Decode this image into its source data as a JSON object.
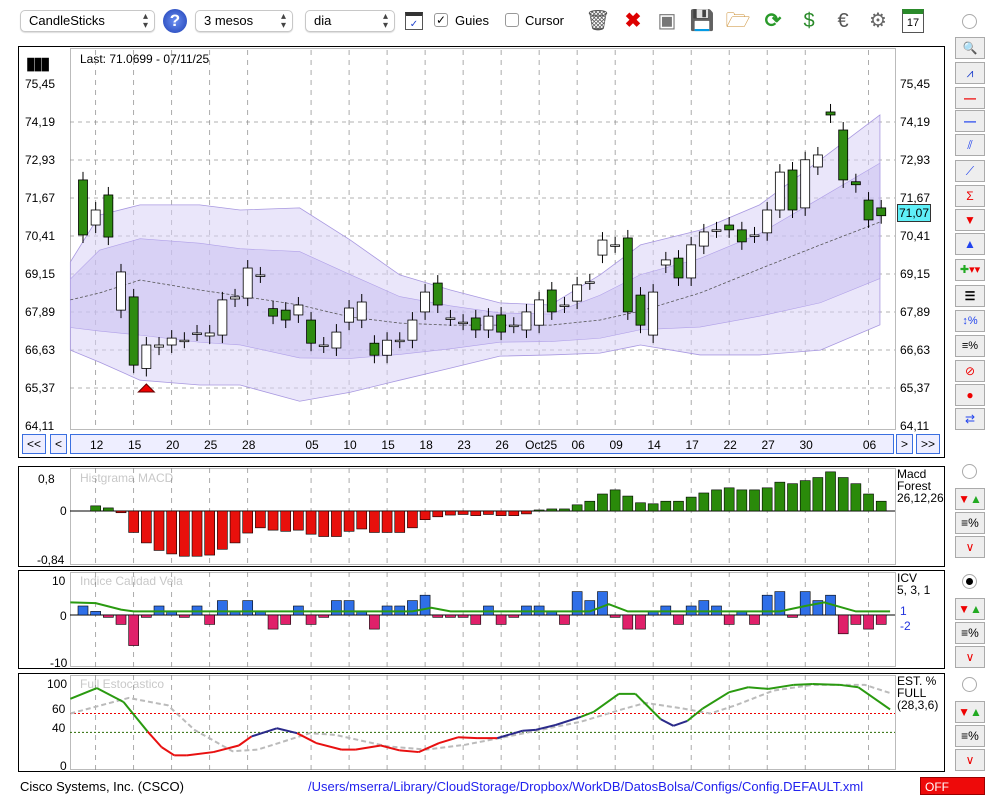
{
  "toolbar": {
    "chart_type": "CandleSticks",
    "period": "3 mesos",
    "interval": "dia",
    "guides_label": "Guies",
    "guides_checked": true,
    "cursor_label": "Cursor",
    "cursor_checked": false,
    "calendar_day": "17"
  },
  "main": {
    "last_label": "Last: 71.0699 - 07/11/25",
    "last_value": "71,07",
    "price_ticks": [
      "75,45",
      "74,19",
      "72,93",
      "71,67",
      "70,41",
      "69,15",
      "67,89",
      "66,63",
      "65,37",
      "64,11"
    ],
    "nav": {
      "first": "<<",
      "prev": "<",
      "next": ">",
      "last": ">>"
    },
    "date_labels": [
      {
        "i": 1,
        "t": "12"
      },
      {
        "i": 4,
        "t": "15"
      },
      {
        "i": 7,
        "t": "20"
      },
      {
        "i": 10,
        "t": "25"
      },
      {
        "i": 13,
        "t": "28"
      },
      {
        "i": 18,
        "t": "05"
      },
      {
        "i": 21,
        "t": "10"
      },
      {
        "i": 24,
        "t": "15"
      },
      {
        "i": 27,
        "t": "18"
      },
      {
        "i": 30,
        "t": "23"
      },
      {
        "i": 33,
        "t": "26"
      },
      {
        "i": 36,
        "t": "Oct25"
      },
      {
        "i": 39,
        "t": "06"
      },
      {
        "i": 42,
        "t": "09"
      },
      {
        "i": 45,
        "t": "14"
      },
      {
        "i": 48,
        "t": "17"
      },
      {
        "i": 51,
        "t": "22"
      },
      {
        "i": 54,
        "t": "27"
      },
      {
        "i": 57,
        "t": "30"
      },
      {
        "i": 62,
        "t": "06"
      }
    ]
  },
  "macd": {
    "title": "Histgrama MACD",
    "legend": [
      "Macd",
      "Forest",
      "26,12,26"
    ],
    "ticks": [
      "0,8",
      "0",
      "-0,84"
    ]
  },
  "icv": {
    "title": "Indice Calidad Vela",
    "legend": [
      "ICV",
      "5, 3, 1"
    ],
    "values_shown": [
      "1",
      "-2"
    ],
    "ticks": [
      "10",
      "0",
      "-10"
    ]
  },
  "stoch": {
    "title": "Full Estocastico",
    "legend": [
      "EST. %",
      "FULL",
      "(28,3,6)"
    ],
    "ticks": [
      "100",
      "60",
      "40",
      "0"
    ]
  },
  "footer": {
    "company": "Cisco Systems, Inc. (CSCO)",
    "path": "/Users/mserra/Library/CloudStorage/Dropbox/WorkDB/DatosBolsa/Configs/Config.DEFAULT.xml",
    "status": "OFF"
  },
  "colors": {
    "up_body": "#ffffff",
    "down_body": "#2e8b10",
    "band": "#d9d2f5",
    "macd_pos": "#2a8a0a",
    "macd_neg": "#e8100c",
    "icv_pos": "#2f6fe8",
    "icv_neg": "#e0206a",
    "accent": "#3a6fe0"
  },
  "chart_data": [
    {
      "type": "candlestick",
      "title": "CSCO",
      "ylim": [
        64.11,
        75.45
      ],
      "ohlc_bodies": [
        [
          72.26,
          70.43
        ],
        [
          70.76,
          71.26
        ],
        [
          71.76,
          70.36
        ],
        [
          67.93,
          69.2
        ],
        [
          68.37,
          66.1
        ],
        [
          65.99,
          66.77
        ],
        [
          66.7,
          66.77
        ],
        [
          66.77,
          67.0
        ],
        [
          66.93,
          66.93
        ],
        [
          67.17,
          67.17
        ],
        [
          67.07,
          67.17
        ],
        [
          67.1,
          68.27
        ],
        [
          68.3,
          68.37
        ],
        [
          68.33,
          69.33
        ],
        [
          69.1,
          69.1
        ],
        [
          67.98,
          67.73
        ],
        [
          67.93,
          67.6
        ],
        [
          67.77,
          68.1
        ],
        [
          67.6,
          66.83
        ],
        [
          66.77,
          66.77
        ],
        [
          66.67,
          67.2
        ],
        [
          67.53,
          68.0
        ],
        [
          67.6,
          68.2
        ],
        [
          66.83,
          66.43
        ],
        [
          66.43,
          66.93
        ],
        [
          66.93,
          66.93
        ],
        [
          66.93,
          67.6
        ],
        [
          67.87,
          68.53
        ],
        [
          68.83,
          68.1
        ],
        [
          67.67,
          67.67
        ],
        [
          67.53,
          67.53
        ],
        [
          67.67,
          67.27
        ],
        [
          67.27,
          67.73
        ],
        [
          67.77,
          67.2
        ],
        [
          67.43,
          67.43
        ],
        [
          67.27,
          67.87
        ],
        [
          67.43,
          68.27
        ],
        [
          68.6,
          67.87
        ],
        [
          68.1,
          68.1
        ],
        [
          68.23,
          68.77
        ],
        [
          68.87,
          68.87
        ],
        [
          69.76,
          70.26
        ],
        [
          70.1,
          70.1
        ],
        [
          70.33,
          67.87
        ],
        [
          68.43,
          67.43
        ],
        [
          67.1,
          68.53
        ],
        [
          69.43,
          69.6
        ],
        [
          69.66,
          69.0
        ],
        [
          69.0,
          70.1
        ],
        [
          70.06,
          70.53
        ],
        [
          70.6,
          70.6
        ],
        [
          70.76,
          70.6
        ],
        [
          70.6,
          70.2
        ],
        [
          70.43,
          70.43
        ],
        [
          70.5,
          71.26
        ],
        [
          71.26,
          72.52
        ],
        [
          72.59,
          71.26
        ],
        [
          71.33,
          72.93
        ],
        [
          72.69,
          73.09
        ],
        [
          74.52,
          74.42
        ],
        [
          73.92,
          72.26
        ],
        [
          72.2,
          72.1
        ],
        [
          71.59,
          70.93
        ],
        [
          71.33,
          71.07
        ]
      ],
      "band_x": [
        -1,
        1.3,
        4.5,
        9.2,
        12.4,
        17.1,
        21.1,
        25,
        29,
        32.9,
        36.9,
        40.8,
        44,
        48.7,
        53.4,
        58.2,
        62.9
      ],
      "band_upper": [
        69.53,
        71.09,
        71.43,
        71.43,
        71.26,
        71.33,
        70.26,
        69.1,
        68.6,
        68.17,
        68.1,
        69.1,
        70.1,
        70.59,
        71.43,
        72.93,
        74.42
      ],
      "band_middle": [
        68.27,
        68.5,
        68.93,
        68.6,
        68.4,
        68.1,
        67.7,
        67.5,
        67.43,
        67.43,
        67.43,
        67.6,
        67.9,
        68.5,
        69.3,
        70.1,
        70.86
      ],
      "band_lower": [
        66.6,
        66.2,
        65.6,
        65.44,
        65.44,
        64.9,
        65.2,
        65.6,
        66.0,
        66.4,
        66.44,
        66.5,
        66.77,
        66.44,
        66.44,
        66.6,
        67.44
      ]
    },
    {
      "type": "bar",
      "title": "Histgrama MACD",
      "ylim": [
        -0.84,
        0.8
      ],
      "values": [
        null,
        0.1,
        0.06,
        -0.03,
        -0.37,
        -0.55,
        -0.68,
        -0.74,
        -0.78,
        -0.78,
        -0.76,
        -0.66,
        -0.55,
        -0.38,
        -0.29,
        -0.33,
        -0.35,
        -0.33,
        -0.4,
        -0.44,
        -0.44,
        -0.35,
        -0.31,
        -0.37,
        -0.37,
        -0.37,
        -0.29,
        -0.15,
        -0.1,
        -0.07,
        -0.06,
        -0.08,
        -0.06,
        -0.08,
        -0.08,
        -0.05,
        0.02,
        0.04,
        0.04,
        0.12,
        0.19,
        0.33,
        0.41,
        0.29,
        0.16,
        0.14,
        0.19,
        0.19,
        0.27,
        0.35,
        0.41,
        0.45,
        0.41,
        0.41,
        0.45,
        0.56,
        0.53,
        0.59,
        0.65,
        0.76,
        0.65,
        0.53,
        0.33,
        0.19
      ]
    },
    {
      "type": "bar",
      "title": "Indice Calidad Vela",
      "ylim": [
        -10,
        10
      ],
      "values": [
        2.5,
        1,
        -0.5,
        -2,
        -6.5,
        -0.5,
        2.5,
        1,
        -0.5,
        2.5,
        -2,
        4,
        1,
        4,
        1,
        -3,
        -2,
        2.5,
        -2,
        -0.5,
        4,
        4,
        1,
        -3,
        2.5,
        2.5,
        4,
        5.5,
        -0.5,
        -0.5,
        -0.5,
        -2,
        2.5,
        -2,
        -0.5,
        2.5,
        2.5,
        1,
        -2,
        6.5,
        4,
        6.5,
        -0.5,
        -3,
        -3,
        1,
        2.5,
        -2,
        2.5,
        4,
        2.5,
        -2,
        1,
        -2,
        5.5,
        6.5,
        -0.5,
        6.5,
        4,
        5.5,
        -4,
        -2,
        -3,
        -2
      ],
      "line_x": [
        -1,
        1,
        3,
        4,
        26,
        27.5,
        29,
        40,
        41.5,
        43,
        55,
        57,
        58.5,
        61,
        63.7
      ],
      "line": [
        3.5,
        3.3,
        1.5,
        1,
        1,
        2,
        1,
        1,
        3,
        1,
        1,
        2.5,
        3.5,
        1,
        1
      ]
    },
    {
      "type": "line",
      "title": "Full Estocastico",
      "ylim": [
        0,
        100
      ],
      "k_x": [
        -1,
        1.1,
        3.2,
        5.1,
        6.2,
        7.2,
        8.2,
        10.3,
        12.3,
        13.3,
        15.3,
        16.9,
        18.4,
        20.4,
        21.5,
        23.5,
        25,
        26.5,
        28.1,
        29.6,
        31.1,
        32.7,
        34.7,
        35.7,
        37.3,
        39.3,
        40.3,
        42.3,
        43.6,
        45.6,
        46.6,
        47.7,
        48.9,
        51,
        52.5,
        54.1,
        56.1,
        57.6,
        59.7,
        61.2,
        63.7
      ],
      "k": [
        82,
        95,
        78,
        42,
        23,
        13,
        13,
        17,
        25,
        36,
        46,
        40,
        28,
        20,
        20,
        25,
        19,
        17,
        28,
        35,
        34,
        34,
        43,
        44,
        50,
        60,
        66,
        88,
        88,
        57,
        49,
        55,
        70,
        90,
        96,
        94,
        99,
        100,
        99,
        96,
        69
      ],
      "d_x": [
        -1,
        3.6,
        6.7,
        8.8,
        11.8,
        13.8,
        17.9,
        19.9,
        24,
        27.1,
        30.2,
        34.2,
        39.3,
        42.3,
        44.4,
        47.4,
        49.5,
        51.5,
        54.5,
        57.6,
        61.7,
        63.7
      ],
      "d": [
        64,
        83,
        74,
        44,
        18,
        20,
        40,
        38,
        24,
        20,
        26,
        38,
        54,
        68,
        77,
        70,
        64,
        74,
        92,
        99,
        99,
        89
      ],
      "levels": [
        64,
        41
      ]
    }
  ]
}
